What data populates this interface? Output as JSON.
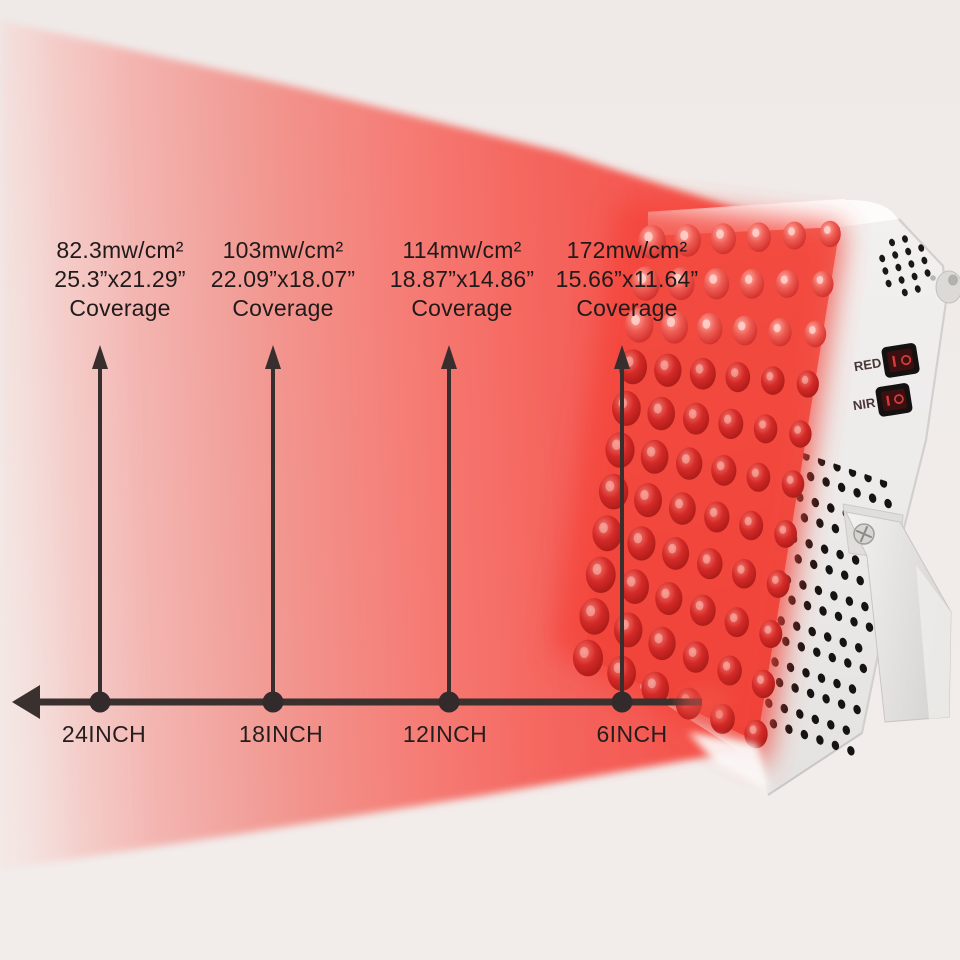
{
  "measurements": [
    {
      "irradiance": "82.3mw/cm²",
      "coverage_size": "25.3”x21.29”",
      "coverage_label": "Coverage",
      "distance": "24INCH"
    },
    {
      "irradiance": "103mw/cm²",
      "coverage_size": "22.09”x18.07”",
      "coverage_label": "Coverage",
      "distance": "18INCH"
    },
    {
      "irradiance": "114mw/cm²",
      "coverage_size": "18.87”x14.86”",
      "coverage_label": "Coverage",
      "distance": "12INCH"
    },
    {
      "irradiance": "172mw/cm²",
      "coverage_size": "15.66”x11.64”",
      "coverage_label": "Coverage",
      "distance": "6INCH"
    }
  ],
  "device": {
    "switches": [
      {
        "label": "RED",
        "marks": "I O"
      },
      {
        "label": "NIR",
        "marks": "I O"
      }
    ],
    "colors": {
      "body": "#f6f5f3",
      "led": "#d42a28",
      "glow": "#f4453b"
    }
  },
  "style": {
    "background": "#f0ebe9",
    "axis_color": "#3a302e",
    "tick_dot_color": "#332b2b",
    "text_color": "#201a1a",
    "beam": {
      "far": "#f7dcd8",
      "mid": "#f2938c",
      "near": "#f4453c"
    }
  }
}
